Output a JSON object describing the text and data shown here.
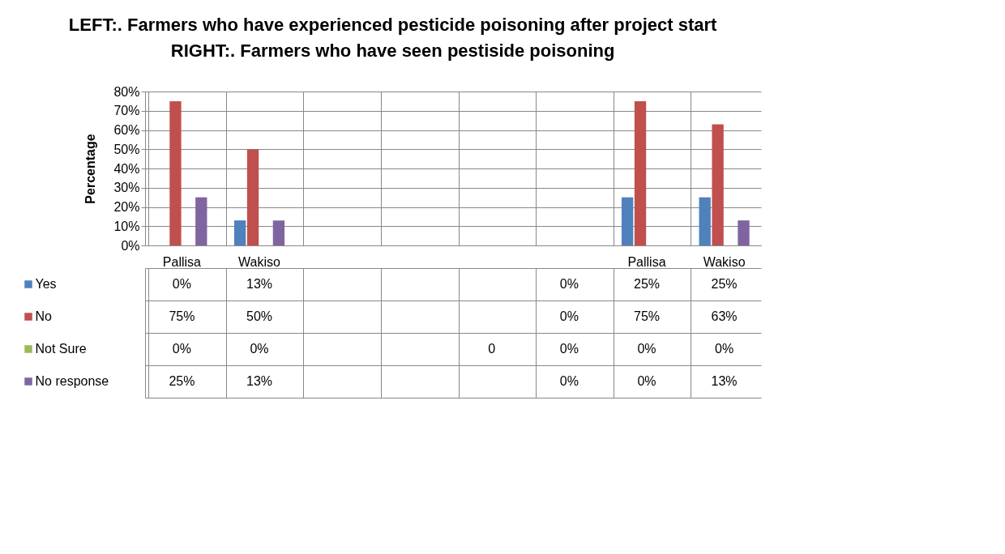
{
  "chart_data": {
    "type": "bar",
    "title": "LEFT:. Farmers who have experienced pesticide poisoning after project start",
    "subtitle": "RIGHT:. Farmers who have seen pestiside poisoning",
    "ylabel": "Percentage",
    "categories": [
      "Pallisa",
      "Wakiso",
      null,
      null,
      null,
      null,
      "Pallisa",
      "Wakiso"
    ],
    "series": [
      {
        "name": "Yes",
        "color": "#4f81bd",
        "values": [
          0,
          13,
          null,
          null,
          null,
          0,
          25,
          25
        ],
        "value_labels": [
          "0%",
          "13%",
          null,
          null,
          null,
          "0%",
          "25%",
          "25%"
        ]
      },
      {
        "name": "No",
        "color": "#c0504d",
        "values": [
          75,
          50,
          null,
          null,
          null,
          0,
          75,
          63
        ],
        "value_labels": [
          "75%",
          "50%",
          null,
          null,
          null,
          "0%",
          "75%",
          "63%"
        ]
      },
      {
        "name": "Not Sure",
        "color": "#9bbb59",
        "values": [
          0,
          0,
          null,
          null,
          0,
          0,
          0,
          0
        ],
        "value_labels": [
          "0%",
          "0%",
          null,
          null,
          "0",
          "0%",
          "0%",
          "0%"
        ]
      },
      {
        "name": "No response",
        "color": "#8064a2",
        "values": [
          25,
          13,
          null,
          null,
          null,
          0,
          0,
          13
        ],
        "value_labels": [
          "25%",
          "13%",
          null,
          null,
          null,
          "0%",
          "0%",
          "13%"
        ]
      }
    ],
    "ylim": [
      0,
      80
    ],
    "yticks": [
      {
        "value": 0,
        "label": "0%"
      },
      {
        "value": 10,
        "label": "10%"
      },
      {
        "value": 20,
        "label": "20%"
      },
      {
        "value": 30,
        "label": "30%"
      },
      {
        "value": 40,
        "label": "40%"
      },
      {
        "value": 50,
        "label": "50%"
      },
      {
        "value": 60,
        "label": "60%"
      },
      {
        "value": 70,
        "label": "70%"
      },
      {
        "value": 80,
        "label": "80%"
      }
    ],
    "grid": "y",
    "legend": "bottom left"
  }
}
